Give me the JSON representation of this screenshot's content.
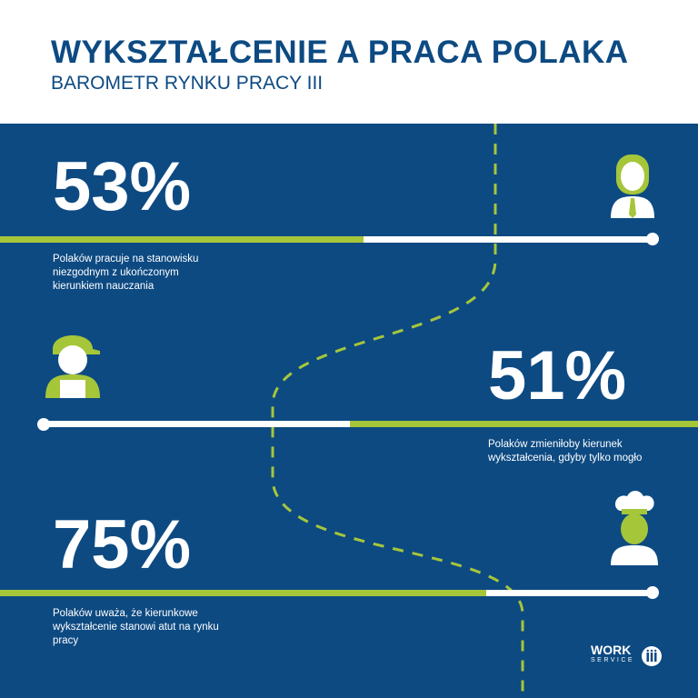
{
  "header": {
    "title": "WYKSZTAŁCENIE A PRACA POLAKA",
    "subtitle": "BAROMETR RYNKU PRACY III"
  },
  "colors": {
    "blue": "#0d4a82",
    "green": "#a6c63a"
  },
  "stats": [
    {
      "value": "53%",
      "percent": 53,
      "text": "Polaków pracuje na stanowisku niezgodnym z ukończonym kierunkiem nauczania",
      "icon": "call-center-worker-icon"
    },
    {
      "value": "51%",
      "percent": 51,
      "text": "Polaków zmieniłoby kierunek wykształcenia, gdyby tylko mogło",
      "icon": "mechanic-icon"
    },
    {
      "value": "75%",
      "percent": 75,
      "text": "Polaków uważa, że kierunkowe wykształcenie stanowi atut na rynku pracy",
      "icon": "chef-icon"
    }
  ],
  "logo": {
    "line1": "WORK",
    "line2": "SERVICE"
  }
}
